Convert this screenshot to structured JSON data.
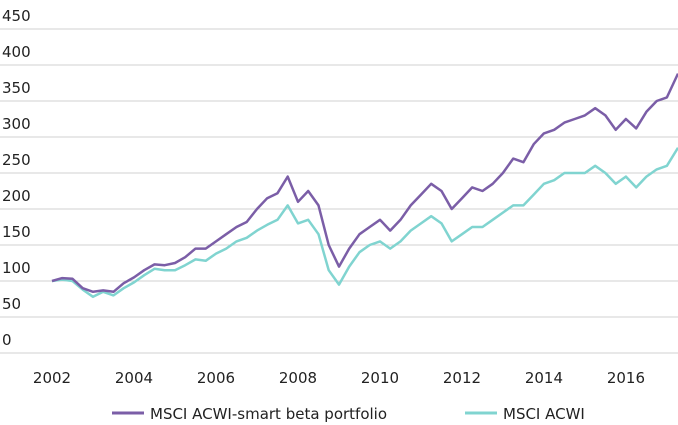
{
  "chart_data": {
    "type": "line",
    "x": [
      2002.0,
      2002.25,
      2002.5,
      2002.75,
      2003.0,
      2003.25,
      2003.5,
      2003.75,
      2004.0,
      2004.25,
      2004.5,
      2004.75,
      2005.0,
      2005.25,
      2005.5,
      2005.75,
      2006.0,
      2006.25,
      2006.5,
      2006.75,
      2007.0,
      2007.25,
      2007.5,
      2007.75,
      2008.0,
      2008.25,
      2008.5,
      2008.75,
      2009.0,
      2009.25,
      2009.5,
      2009.75,
      2010.0,
      2010.25,
      2010.5,
      2010.75,
      2011.0,
      2011.25,
      2011.5,
      2011.75,
      2012.0,
      2012.25,
      2012.5,
      2012.75,
      2013.0,
      2013.25,
      2013.5,
      2013.75,
      2014.0,
      2014.25,
      2014.5,
      2014.75,
      2015.0,
      2015.25,
      2015.5,
      2015.75,
      2016.0,
      2016.25,
      2016.5,
      2016.75,
      2017.0,
      2017.27
    ],
    "series": [
      {
        "name": "MSCI ACWI-smart beta portfolio",
        "color": "#7b5ea7",
        "values": [
          100,
          104,
          103,
          90,
          85,
          87,
          85,
          97,
          105,
          115,
          123,
          122,
          125,
          133,
          145,
          145,
          155,
          165,
          175,
          182,
          200,
          215,
          222,
          245,
          210,
          225,
          205,
          150,
          120,
          145,
          165,
          175,
          185,
          170,
          185,
          205,
          220,
          235,
          225,
          200,
          215,
          230,
          225,
          235,
          250,
          270,
          265,
          290,
          305,
          310,
          320,
          325,
          330,
          340,
          330,
          310,
          325,
          312,
          335,
          350,
          355,
          388
        ]
      },
      {
        "name": "MSCI ACWI",
        "color": "#80d4d0",
        "values": [
          100,
          102,
          100,
          88,
          78,
          85,
          80,
          90,
          98,
          108,
          117,
          115,
          115,
          122,
          130,
          128,
          138,
          145,
          155,
          160,
          170,
          178,
          185,
          205,
          180,
          185,
          165,
          115,
          95,
          120,
          140,
          150,
          155,
          145,
          155,
          170,
          180,
          190,
          180,
          155,
          165,
          175,
          175,
          185,
          195,
          205,
          205,
          220,
          235,
          240,
          250,
          250,
          250,
          260,
          250,
          235,
          245,
          230,
          245,
          255,
          260,
          285
        ]
      }
    ],
    "xlim": [
      2002,
      2017.27
    ],
    "xticks": [
      2002,
      2004,
      2006,
      2008,
      2010,
      2012,
      2014,
      2016
    ],
    "ylim": [
      0,
      450
    ],
    "yticks": [
      0,
      50,
      100,
      150,
      200,
      250,
      300,
      350,
      400,
      450
    ],
    "grid": true
  }
}
